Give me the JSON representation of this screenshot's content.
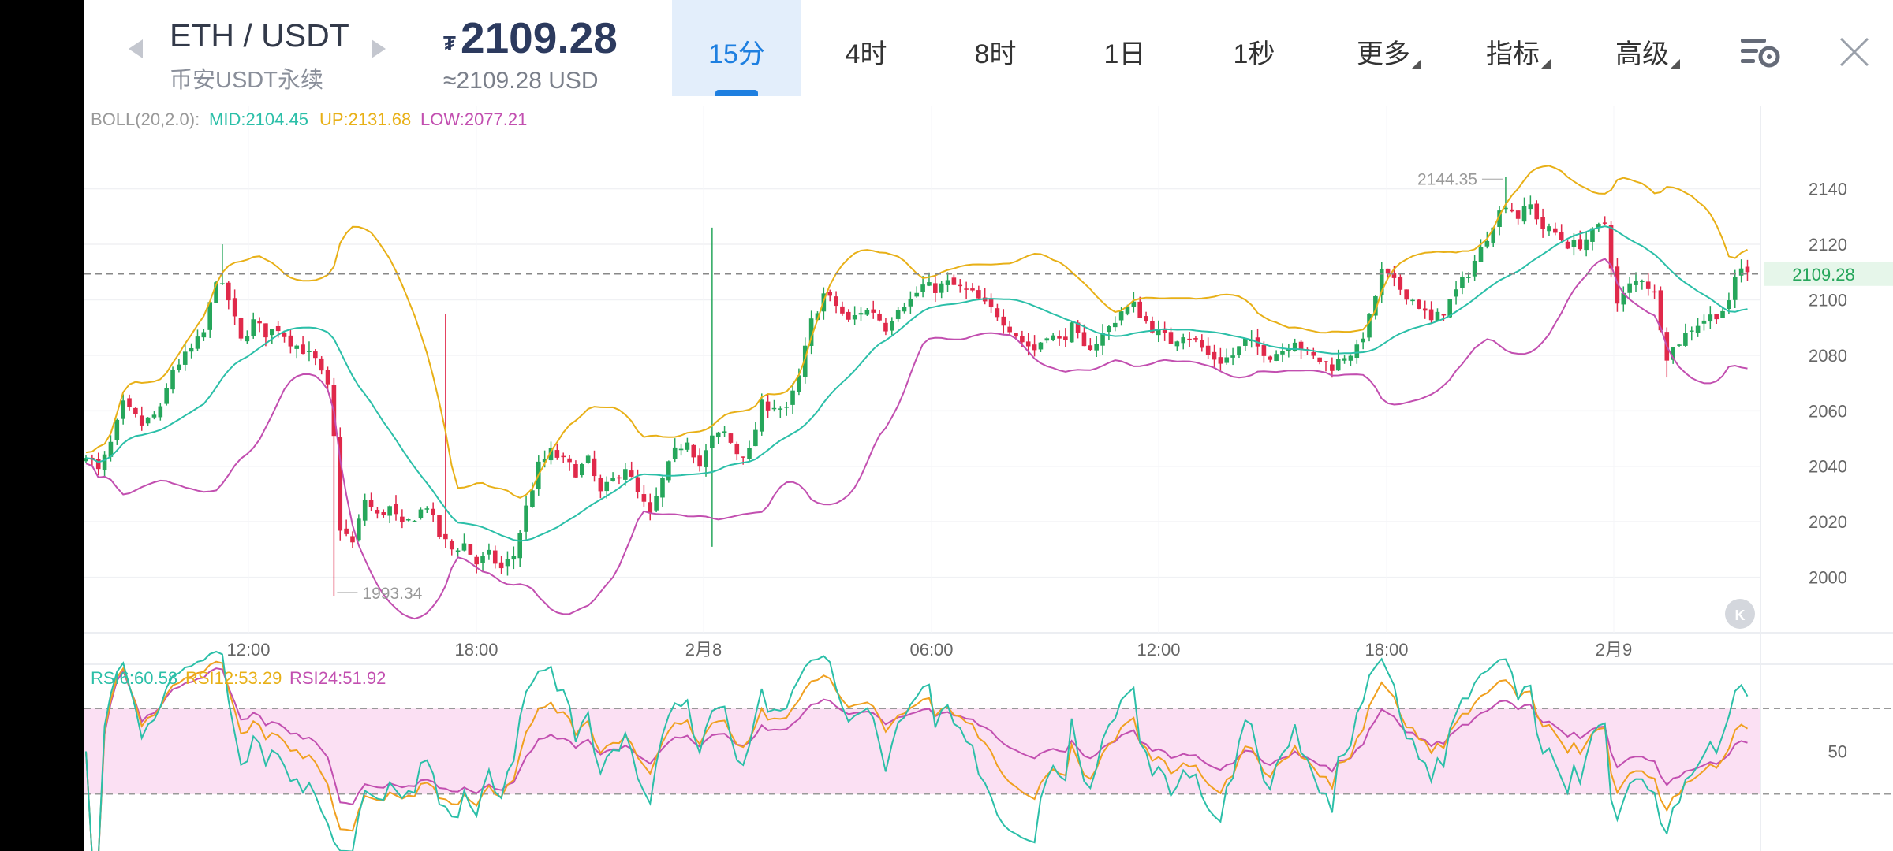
{
  "header": {
    "pair": "ETH / USDT",
    "market": "币安USDT永续",
    "price_symbol": "₮",
    "price": "2109.28",
    "price_usd": "≈2109.28 USD",
    "close_icon": "close-icon",
    "settings_icon": "chart-settings-icon"
  },
  "tabs": [
    {
      "label": "15分",
      "selected": true
    },
    {
      "label": "4时",
      "selected": false
    },
    {
      "label": "8时",
      "selected": false
    },
    {
      "label": "1日",
      "selected": false
    },
    {
      "label": "1秒",
      "selected": false
    },
    {
      "label": "更多",
      "selected": false,
      "dropdown": true
    },
    {
      "label": "指标",
      "selected": false,
      "dropdown": true
    },
    {
      "label": "高级",
      "selected": false,
      "dropdown": true
    }
  ],
  "colors": {
    "up": "#26a65b",
    "down": "#e0294a",
    "mid": "#2bbfa8",
    "upper": "#e8b017",
    "lower": "#c24fb0",
    "rsi6": "#2bbfa8",
    "rsi12": "#f0a020",
    "rsi24": "#c24fb0",
    "rsi_band": "#fbe0f3",
    "price_tag": "#26a65b"
  },
  "chart_data": {
    "type": "candlestick",
    "interval": "15分",
    "boll": {
      "label": "BOLL(20,2.0):",
      "mid": "MID:2104.45",
      "up": "UP:2131.68",
      "low": "LOW:2077.21"
    },
    "y_ticks": [
      "2140",
      "2120",
      "2100",
      "2080",
      "2060",
      "2040",
      "2020",
      "2000"
    ],
    "ylim": [
      1980,
      2170
    ],
    "x_ticks": [
      "12:00",
      "18:00",
      "2月8",
      "06:00",
      "12:00",
      "18:00",
      "2月9"
    ],
    "current_price": "2109.28",
    "high_label": "2144.35",
    "low_label": "1993.34",
    "close_path": [
      [
        0,
        2045
      ],
      [
        2,
        2038
      ],
      [
        4,
        2048
      ],
      [
        6,
        2062
      ],
      [
        9,
        2055
      ],
      [
        12,
        2060
      ],
      [
        14,
        2075
      ],
      [
        17,
        2082
      ],
      [
        19,
        2088
      ],
      [
        21,
        2108
      ],
      [
        23,
        2100
      ],
      [
        25,
        2085
      ],
      [
        27,
        2092
      ],
      [
        29,
        2088
      ],
      [
        31,
        2090
      ],
      [
        33,
        2085
      ],
      [
        35,
        2082
      ],
      [
        37,
        2078
      ],
      [
        39,
        2068
      ],
      [
        40,
        2050
      ],
      [
        41,
        2018
      ],
      [
        43,
        2012
      ],
      [
        45,
        2028
      ],
      [
        47,
        2022
      ],
      [
        49,
        2025
      ],
      [
        51,
        2018
      ],
      [
        53,
        2022
      ],
      [
        55,
        2026
      ],
      [
        57,
        2015
      ],
      [
        59,
        2010
      ],
      [
        61,
        2012
      ],
      [
        63,
        2005
      ],
      [
        65,
        2008
      ],
      [
        67,
        2003
      ],
      [
        69,
        2008
      ],
      [
        71,
        2025
      ],
      [
        73,
        2040
      ],
      [
        75,
        2045
      ],
      [
        77,
        2042
      ],
      [
        79,
        2038
      ],
      [
        81,
        2042
      ],
      [
        83,
        2030
      ],
      [
        85,
        2035
      ],
      [
        87,
        2040
      ],
      [
        89,
        2030
      ],
      [
        91,
        2022
      ],
      [
        93,
        2035
      ],
      [
        95,
        2045
      ],
      [
        97,
        2050
      ],
      [
        99,
        2040
      ],
      [
        101,
        2050
      ],
      [
        103,
        2052
      ],
      [
        105,
        2045
      ],
      [
        107,
        2045
      ],
      [
        109,
        2062
      ],
      [
        111,
        2062
      ],
      [
        113,
        2060
      ],
      [
        115,
        2072
      ],
      [
        117,
        2092
      ],
      [
        119,
        2102
      ],
      [
        121,
        2098
      ],
      [
        123,
        2092
      ],
      [
        125,
        2096
      ],
      [
        127,
        2096
      ],
      [
        129,
        2090
      ],
      [
        131,
        2098
      ],
      [
        133,
        2100
      ],
      [
        135,
        2105
      ],
      [
        137,
        2104
      ],
      [
        139,
        2106
      ],
      [
        141,
        2104
      ],
      [
        143,
        2102
      ],
      [
        145,
        2098
      ],
      [
        147,
        2095
      ],
      [
        149,
        2090
      ],
      [
        151,
        2085
      ],
      [
        153,
        2082
      ],
      [
        155,
        2088
      ],
      [
        157,
        2085
      ],
      [
        159,
        2090
      ],
      [
        161,
        2082
      ],
      [
        163,
        2085
      ],
      [
        165,
        2090
      ],
      [
        167,
        2096
      ],
      [
        169,
        2098
      ],
      [
        171,
        2092
      ],
      [
        173,
        2088
      ],
      [
        175,
        2085
      ],
      [
        177,
        2088
      ],
      [
        179,
        2085
      ],
      [
        181,
        2080
      ],
      [
        183,
        2078
      ],
      [
        185,
        2080
      ],
      [
        187,
        2085
      ],
      [
        189,
        2083
      ],
      [
        191,
        2080
      ],
      [
        193,
        2082
      ],
      [
        195,
        2086
      ],
      [
        197,
        2080
      ],
      [
        199,
        2078
      ],
      [
        201,
        2076
      ],
      [
        203,
        2080
      ],
      [
        205,
        2082
      ],
      [
        207,
        2093
      ],
      [
        209,
        2110
      ],
      [
        211,
        2106
      ],
      [
        213,
        2102
      ],
      [
        215,
        2098
      ],
      [
        217,
        2092
      ],
      [
        219,
        2096
      ],
      [
        221,
        2103
      ],
      [
        223,
        2110
      ],
      [
        225,
        2118
      ],
      [
        227,
        2128
      ],
      [
        229,
        2135
      ],
      [
        231,
        2130
      ],
      [
        233,
        2134
      ],
      [
        235,
        2126
      ],
      [
        237,
        2124
      ],
      [
        239,
        2120
      ],
      [
        241,
        2120
      ],
      [
        243,
        2124
      ],
      [
        245,
        2128
      ],
      [
        247,
        2098
      ],
      [
        249,
        2105
      ],
      [
        251,
        2108
      ],
      [
        253,
        2102
      ],
      [
        255,
        2080
      ],
      [
        257,
        2085
      ],
      [
        259,
        2090
      ],
      [
        261,
        2093
      ],
      [
        263,
        2095
      ],
      [
        265,
        2098
      ],
      [
        266,
        2108
      ],
      [
        267,
        2112
      ],
      [
        268,
        2109
      ]
    ],
    "rsi": {
      "labels": {
        "rsi6": "RSI6:60.58",
        "rsi12": "RSI12:53.29",
        "rsi24": "RSI24:51.92"
      },
      "axis_tick": "50",
      "band": [
        30,
        70
      ],
      "ylim": [
        10,
        90
      ]
    }
  }
}
